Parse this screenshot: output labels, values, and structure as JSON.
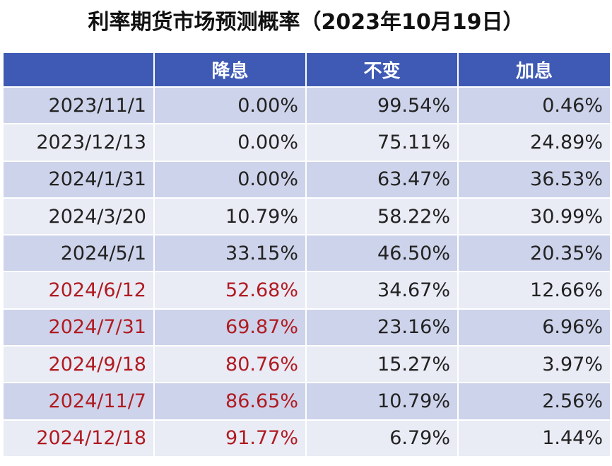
{
  "title": "利率期货市场预测概率（2023年10月19日）",
  "header": {
    "col0": "",
    "col1": "降息",
    "col2": "不变",
    "col3": "加息"
  },
  "colors": {
    "header_bg": "#3f5ab5",
    "row_odd": "#cdd3ea",
    "row_even": "#e9ebf5",
    "highlight": "#b01b21"
  },
  "rows": [
    {
      "date": "2023/11/1",
      "cut": "0.00%",
      "hold": "99.54%",
      "hike": "0.46%",
      "highlight": false
    },
    {
      "date": "2023/12/13",
      "cut": "0.00%",
      "hold": "75.11%",
      "hike": "24.89%",
      "highlight": false
    },
    {
      "date": "2024/1/31",
      "cut": "0.00%",
      "hold": "63.47%",
      "hike": "36.53%",
      "highlight": false
    },
    {
      "date": "2024/3/20",
      "cut": "10.79%",
      "hold": "58.22%",
      "hike": "30.99%",
      "highlight": false
    },
    {
      "date": "2024/5/1",
      "cut": "33.15%",
      "hold": "46.50%",
      "hike": "20.35%",
      "highlight": false
    },
    {
      "date": "2024/6/12",
      "cut": "52.68%",
      "hold": "34.67%",
      "hike": "12.66%",
      "highlight": true
    },
    {
      "date": "2024/7/31",
      "cut": "69.87%",
      "hold": "23.16%",
      "hike": "6.96%",
      "highlight": true
    },
    {
      "date": "2024/9/18",
      "cut": "80.76%",
      "hold": "15.27%",
      "hike": "3.97%",
      "highlight": true
    },
    {
      "date": "2024/11/7",
      "cut": "86.65%",
      "hold": "10.79%",
      "hike": "2.56%",
      "highlight": true
    },
    {
      "date": "2024/12/18",
      "cut": "91.77%",
      "hold": "6.79%",
      "hike": "1.44%",
      "highlight": true
    }
  ]
}
